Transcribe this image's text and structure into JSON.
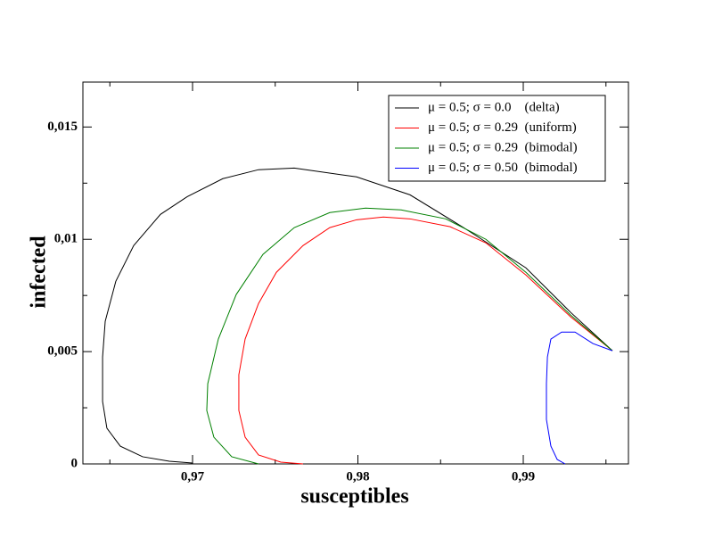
{
  "chart_data": {
    "type": "line",
    "xlabel": "susceptibles",
    "ylabel": "infected",
    "xlim": [
      0.96337,
      0.99636
    ],
    "ylim": [
      0,
      0.017
    ],
    "xticks": [
      {
        "value": 0.97,
        "label": "0,97"
      },
      {
        "value": 0.98,
        "label": "0,98"
      },
      {
        "value": 0.99,
        "label": "0,99"
      }
    ],
    "yticks": [
      0,
      {
        "value": 0.005,
        "label": "0,005"
      },
      {
        "value": 0.01,
        "label": "0,01"
      },
      {
        "value": 0.015,
        "label": "0,015"
      }
    ],
    "xminorticks": [
      0.965,
      0.975,
      0.985,
      0.995
    ],
    "yminorticks": [
      0.0025,
      0.0075,
      0.0125
    ],
    "legend": "upper right",
    "series": [
      {
        "name": "μ = 0.5; σ = 0.0    (delta)",
        "color": "#000000",
        "x": [
          0.99539,
          0.99286,
          0.99016,
          0.98639,
          0.98315,
          0.97992,
          0.97615,
          0.97399,
          0.97183,
          0.96968,
          0.96806,
          0.96644,
          0.96536,
          0.96472,
          0.96456,
          0.96456,
          0.96482,
          0.96563,
          0.96698,
          0.9686,
          0.97
        ],
        "values": [
          0.00504,
          0.00675,
          0.00873,
          0.01052,
          0.01198,
          0.01278,
          0.01317,
          0.0131,
          0.0127,
          0.0119,
          0.01111,
          0.00972,
          0.00813,
          0.00635,
          0.00476,
          0.00278,
          0.00159,
          0.00079,
          0.00032,
          0.00012,
          4e-05
        ]
      },
      {
        "name": "μ = 0.5; σ = 0.29  (uniform)",
        "color": "#ff0000",
        "x": [
          0.99539,
          0.99286,
          0.99016,
          0.98774,
          0.98558,
          0.98315,
          0.98154,
          0.97992,
          0.9783,
          0.97668,
          0.97507,
          0.97399,
          0.97318,
          0.9728,
          0.9728,
          0.97318,
          0.97399,
          0.97534,
          0.97668
        ],
        "values": [
          0.00504,
          0.00655,
          0.00841,
          0.00984,
          0.01056,
          0.01091,
          0.01099,
          0.01087,
          0.01052,
          0.00972,
          0.00853,
          0.00714,
          0.00556,
          0.00397,
          0.00238,
          0.00119,
          0.0004,
          8e-05,
          0
        ]
      },
      {
        "name": "μ = 0.5; σ = 0.29  (bimodal)",
        "color": "#008000",
        "x": [
          0.99539,
          0.99286,
          0.99016,
          0.98774,
          0.98531,
          0.98261,
          0.98046,
          0.9783,
          0.97615,
          0.97426,
          0.97264,
          0.97156,
          0.97092,
          0.97086,
          0.97129,
          0.97237,
          0.97399
        ],
        "values": [
          0.00504,
          0.00663,
          0.00853,
          0.01,
          0.01091,
          0.01131,
          0.01139,
          0.01119,
          0.01052,
          0.00933,
          0.00754,
          0.00556,
          0.00357,
          0.00238,
          0.00119,
          0.00032,
          0
        ]
      },
      {
        "name": "μ = 0.5; σ = 0.50  (bimodal)",
        "color": "#0000ff",
        "x": [
          0.99539,
          0.99421,
          0.99313,
          0.99232,
          0.99167,
          0.99146,
          0.9914,
          0.9914,
          0.99167,
          0.99205,
          0.99253
        ],
        "values": [
          0.00504,
          0.00536,
          0.00587,
          0.00587,
          0.00556,
          0.00476,
          0.00357,
          0.00198,
          0.00079,
          0.0002,
          0
        ]
      }
    ]
  }
}
